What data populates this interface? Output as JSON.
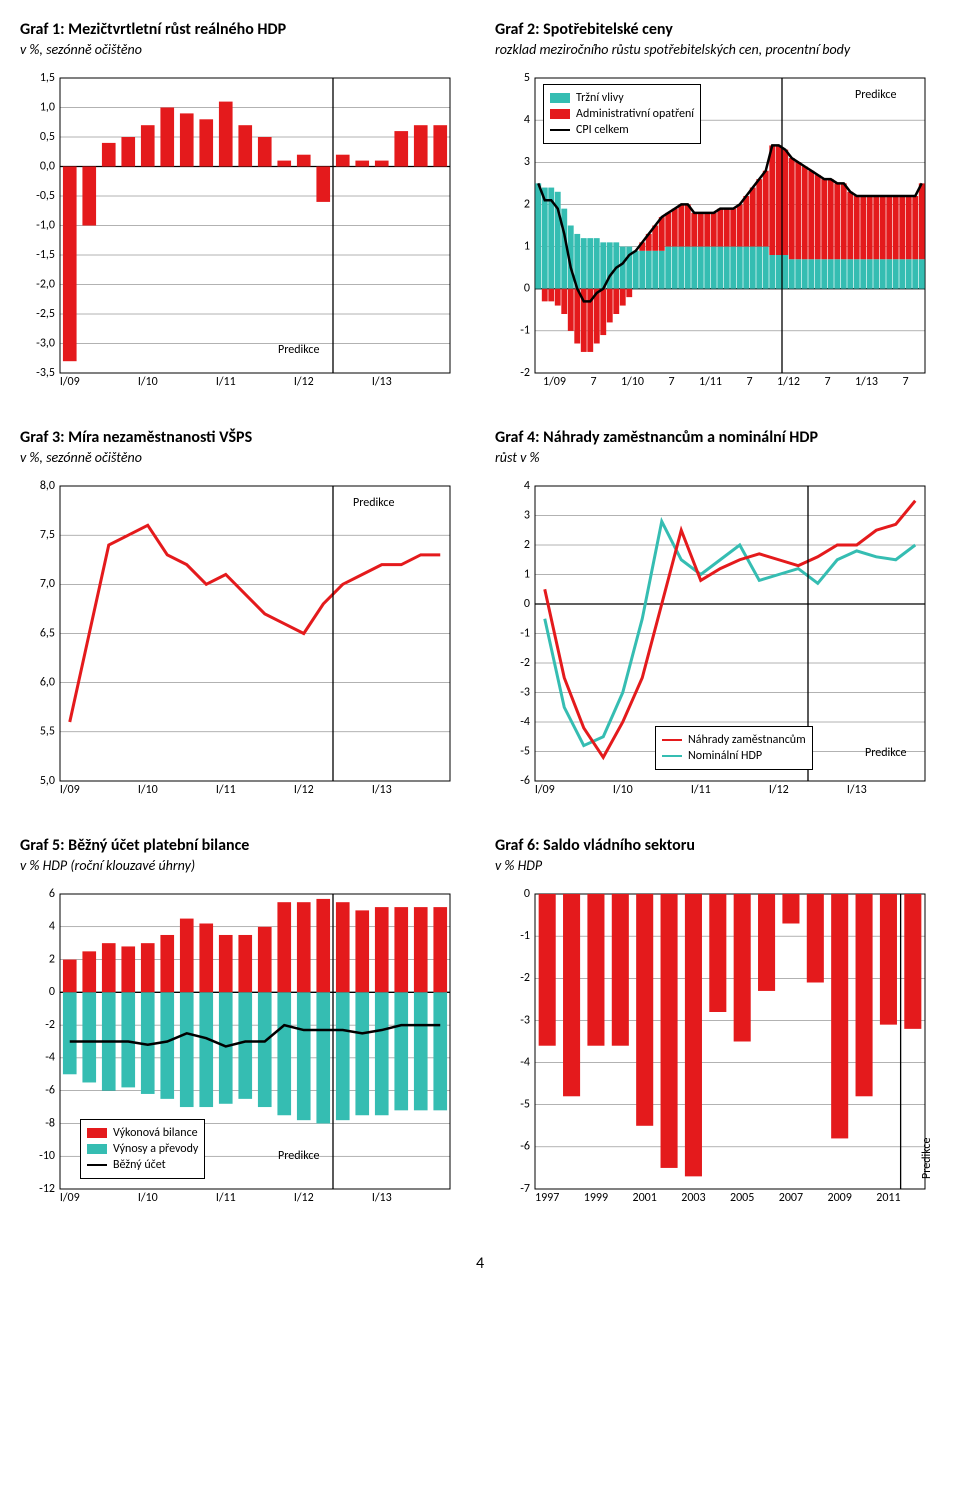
{
  "page_number": "4",
  "colors": {
    "red": "#e41a1c",
    "teal": "#35bdb2",
    "black": "#000000",
    "axis": "#000000",
    "grid": "#000000"
  },
  "charts": {
    "g1": {
      "title": "Graf 1: Mezičtvrtletní růst reálného HDP",
      "subtitle": "v %, sezónně očištěno",
      "ylim": [
        -3.5,
        1.5
      ],
      "ytick_step": 0.5,
      "ytick_decimals": 1,
      "xlabels": [
        "I/09",
        "I/10",
        "I/11",
        "I/12",
        "I/13"
      ],
      "predikce_label": "Predikce",
      "predikce_idx": 14,
      "series": {
        "bars_red": [
          -3.3,
          -1.0,
          0.4,
          0.5,
          0.7,
          1.0,
          0.9,
          0.8,
          1.1,
          0.7,
          0.5,
          0.1,
          0.2,
          -0.6,
          0.2,
          0.1,
          0.1,
          0.6,
          0.7,
          0.7
        ],
        "bar_color": "#e41a1c"
      }
    },
    "g2": {
      "title": "Graf 2: Spotřebitelské ceny",
      "subtitle": "rozklad meziročního růstu spotřebitelských cen, procentní body",
      "ylim": [
        -2,
        5
      ],
      "ytick_step": 1,
      "ytick_decimals": 0,
      "xlabels": [
        "1/09",
        "7",
        "1/10",
        "7",
        "1/11",
        "7",
        "1/12",
        "7",
        "1/13",
        "7"
      ],
      "predikce_label": "Predikce",
      "predikce_idx": 38,
      "n_points": 60,
      "legend": {
        "trzni": "Tržní vlivy",
        "admin": "Administrativní opatření",
        "cpi": "CPI celkem"
      },
      "teal_color": "#35bdb2",
      "red_color": "#e41a1c",
      "line_color": "#000000",
      "teal": [
        2.5,
        2.4,
        2.4,
        2.3,
        1.9,
        1.5,
        1.3,
        1.2,
        1.2,
        1.2,
        1.1,
        1.1,
        1.1,
        1.0,
        1.0,
        0.9,
        0.9,
        0.9,
        0.9,
        0.9,
        1.0,
        1.0,
        1.0,
        1.0,
        1.0,
        1.0,
        1.0,
        1.0,
        1.0,
        1.0,
        1.0,
        1.0,
        1.0,
        1.0,
        1.0,
        1.0,
        0.8,
        0.8,
        0.8,
        0.7,
        0.7,
        0.7,
        0.7,
        0.7,
        0.7,
        0.7,
        0.7,
        0.7,
        0.7,
        0.7,
        0.7,
        0.7,
        0.7,
        0.7,
        0.7,
        0.7,
        0.7,
        0.7,
        0.7,
        0.7
      ],
      "red": [
        0.0,
        -0.3,
        -0.3,
        -0.4,
        -0.6,
        -1.0,
        -1.3,
        -1.5,
        -1.5,
        -1.3,
        -1.1,
        -0.8,
        -0.6,
        -0.4,
        -0.2,
        0.0,
        0.2,
        0.4,
        0.6,
        0.8,
        0.8,
        0.9,
        1.0,
        1.0,
        0.8,
        0.8,
        0.8,
        0.8,
        0.9,
        0.9,
        0.9,
        1.0,
        1.2,
        1.4,
        1.6,
        1.8,
        2.6,
        2.6,
        2.5,
        2.4,
        2.3,
        2.2,
        2.1,
        2.0,
        1.9,
        1.9,
        1.8,
        1.8,
        1.6,
        1.5,
        1.5,
        1.5,
        1.5,
        1.5,
        1.5,
        1.5,
        1.5,
        1.5,
        1.5,
        1.8
      ],
      "line": [
        2.5,
        2.1,
        2.1,
        1.9,
        1.3,
        0.5,
        0.0,
        -0.3,
        -0.3,
        -0.1,
        0.0,
        0.3,
        0.5,
        0.6,
        0.8,
        0.9,
        1.1,
        1.3,
        1.5,
        1.7,
        1.8,
        1.9,
        2.0,
        2.0,
        1.8,
        1.8,
        1.8,
        1.8,
        1.9,
        1.9,
        1.9,
        2.0,
        2.2,
        2.4,
        2.6,
        2.8,
        3.4,
        3.4,
        3.3,
        3.1,
        3.0,
        2.9,
        2.8,
        2.7,
        2.6,
        2.6,
        2.5,
        2.5,
        2.3,
        2.2,
        2.2,
        2.2,
        2.2,
        2.2,
        2.2,
        2.2,
        2.2,
        2.2,
        2.2,
        2.5
      ]
    },
    "g3": {
      "title": "Graf 3: Míra nezaměstnanosti VŠPS",
      "subtitle": "v %, sezónně očištěno",
      "ylim": [
        5.0,
        8.0
      ],
      "ytick_step": 0.5,
      "ytick_decimals": 1,
      "xlabels": [
        "I/09",
        "I/10",
        "I/11",
        "I/12",
        "I/13"
      ],
      "predikce_label": "Predikce",
      "predikce_idx": 14,
      "line_color": "#e41a1c",
      "data": [
        5.6,
        6.5,
        7.4,
        7.5,
        7.6,
        7.3,
        7.2,
        7.0,
        7.1,
        6.9,
        6.7,
        6.6,
        6.5,
        6.8,
        7.0,
        7.1,
        7.2,
        7.2,
        7.3,
        7.3
      ]
    },
    "g4": {
      "title": "Graf 4: Náhrady zaměstnancům a nominální HDP",
      "subtitle": "růst v %",
      "ylim": [
        -6,
        4
      ],
      "ytick_step": 1,
      "ytick_decimals": 0,
      "xlabels": [
        "I/09",
        "I/10",
        "I/11",
        "I/12",
        "I/13"
      ],
      "predikce_label": "Predikce",
      "predikce_idx": 14,
      "legend": {
        "nahrady": "Náhrady zaměstnancům",
        "nominal": "Nominální HDP"
      },
      "red_color": "#e41a1c",
      "teal_color": "#35bdb2",
      "red": [
        0.5,
        -2.5,
        -4.2,
        -5.2,
        -4.0,
        -2.5,
        0.0,
        2.5,
        0.8,
        1.2,
        1.5,
        1.7,
        1.5,
        1.3,
        1.6,
        2.0,
        2.0,
        2.5,
        2.7,
        3.5
      ],
      "teal": [
        -0.5,
        -3.5,
        -4.8,
        -4.5,
        -3.0,
        -0.5,
        2.8,
        1.5,
        1.0,
        1.5,
        2.0,
        0.8,
        1.0,
        1.2,
        0.7,
        1.5,
        1.8,
        1.6,
        1.5,
        2.0
      ]
    },
    "g5": {
      "title": "Graf 5: Běžný účet platební bilance",
      "subtitle": "v % HDP (roční klouzavé úhrny)",
      "ylim": [
        -12,
        6
      ],
      "ytick_step": 2,
      "ytick_decimals": 0,
      "xlabels": [
        "I/09",
        "I/10",
        "I/11",
        "I/12",
        "I/13"
      ],
      "predikce_label": "Predikce",
      "predikce_idx": 14,
      "legend": {
        "vykon": "Výkonová bilance",
        "vynos": "Výnosy a převody",
        "bezny": "Běžný účet"
      },
      "red_color": "#e41a1c",
      "teal_color": "#35bdb2",
      "line_color": "#000000",
      "red": [
        2.0,
        2.5,
        3.0,
        2.8,
        3.0,
        3.5,
        4.5,
        4.2,
        3.5,
        3.5,
        4.0,
        5.5,
        5.5,
        5.7,
        5.5,
        5.0,
        5.2,
        5.2,
        5.2,
        5.2
      ],
      "teal": [
        -5.0,
        -5.5,
        -6.0,
        -5.8,
        -6.2,
        -6.5,
        -7.0,
        -7.0,
        -6.8,
        -6.5,
        -7.0,
        -7.5,
        -7.8,
        -8.0,
        -7.8,
        -7.5,
        -7.5,
        -7.2,
        -7.2,
        -7.2
      ],
      "line": [
        -3.0,
        -3.0,
        -3.0,
        -3.0,
        -3.2,
        -3.0,
        -2.5,
        -2.8,
        -3.3,
        -3.0,
        -3.0,
        -2.0,
        -2.3,
        -2.3,
        -2.3,
        -2.5,
        -2.3,
        -2.0,
        -2.0,
        -2.0
      ]
    },
    "g6": {
      "title": "Graf 6: Saldo vládního sektoru",
      "subtitle": "v % HDP",
      "ylim": [
        -7,
        0
      ],
      "ytick_step": 1,
      "ytick_decimals": 0,
      "xlabels": [
        "1997",
        "1999",
        "2001",
        "2003",
        "2005",
        "2007",
        "2009",
        "2011"
      ],
      "predikce_label": "Predikce",
      "predikce_idx": 15,
      "red_color": "#e41a1c",
      "data": [
        -3.6,
        -4.8,
        -3.6,
        -3.6,
        -5.5,
        -6.5,
        -6.7,
        -2.8,
        -3.5,
        -2.3,
        -0.7,
        -2.1,
        -5.8,
        -4.8,
        -3.1,
        -3.2
      ]
    }
  }
}
